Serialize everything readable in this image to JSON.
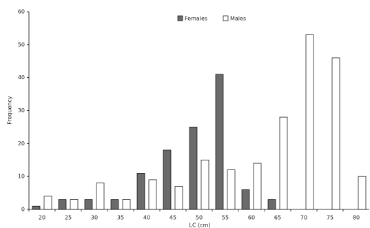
{
  "chart_data": {
    "type": "bar",
    "categories": [
      "20",
      "25",
      "30",
      "35",
      "40",
      "45",
      "50",
      "55",
      "60",
      "65",
      "70",
      "75",
      "80"
    ],
    "series": [
      {
        "name": "Females",
        "color": "#6b6b6b",
        "values": [
          1,
          3,
          3,
          3,
          11,
          18,
          25,
          41,
          6,
          3,
          0,
          0,
          0
        ]
      },
      {
        "name": "Males",
        "color": "#ffffff",
        "values": [
          4,
          3,
          8,
          3,
          9,
          7,
          15,
          12,
          14,
          28,
          53,
          46,
          10
        ]
      }
    ],
    "x_label": "LC (cm)",
    "y_label": "Frequency",
    "ylim": [
      0,
      60
    ],
    "yticks": [
      0,
      10,
      20,
      30,
      40,
      50,
      60
    ],
    "legend": "top"
  }
}
